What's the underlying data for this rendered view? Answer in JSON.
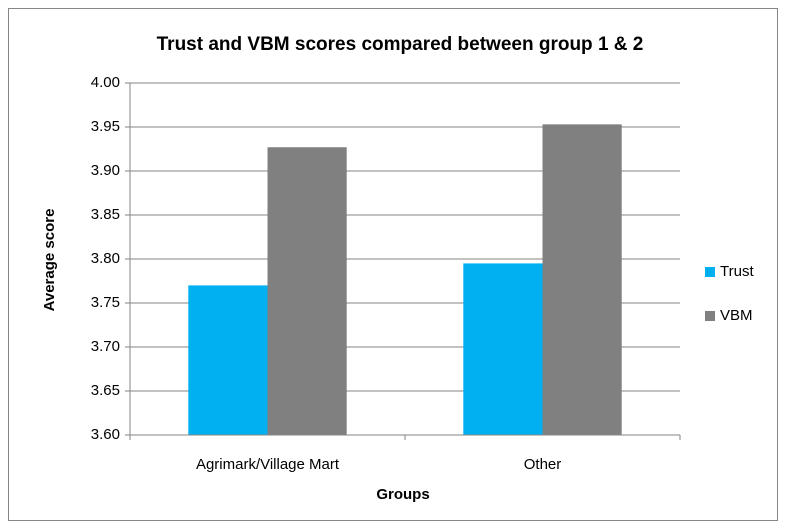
{
  "chart_data": {
    "type": "bar",
    "title": "Trust and VBM scores compared between group 1 & 2",
    "x_label": "Groups",
    "y_label": "Average score",
    "categories": [
      "Agrimark/Village Mart",
      "Other"
    ],
    "series": [
      {
        "name": "Trust",
        "color": "#00b0f0",
        "values": [
          3.77,
          3.795
        ]
      },
      {
        "name": "VBM",
        "color": "#808080",
        "values": [
          3.927,
          3.953
        ]
      }
    ],
    "ylim": [
      3.6,
      4.0
    ],
    "yticks": [
      {
        "value": 3.6,
        "label": "3.60"
      },
      3.65,
      {
        "value": 3.7,
        "label": "3.70"
      },
      3.75,
      {
        "value": 3.8,
        "label": "3.80"
      },
      3.85,
      {
        "value": 3.9,
        "label": "3.90"
      },
      3.95,
      {
        "value": 4.0,
        "label": "4.00"
      }
    ],
    "grid": true,
    "legend": "right"
  }
}
